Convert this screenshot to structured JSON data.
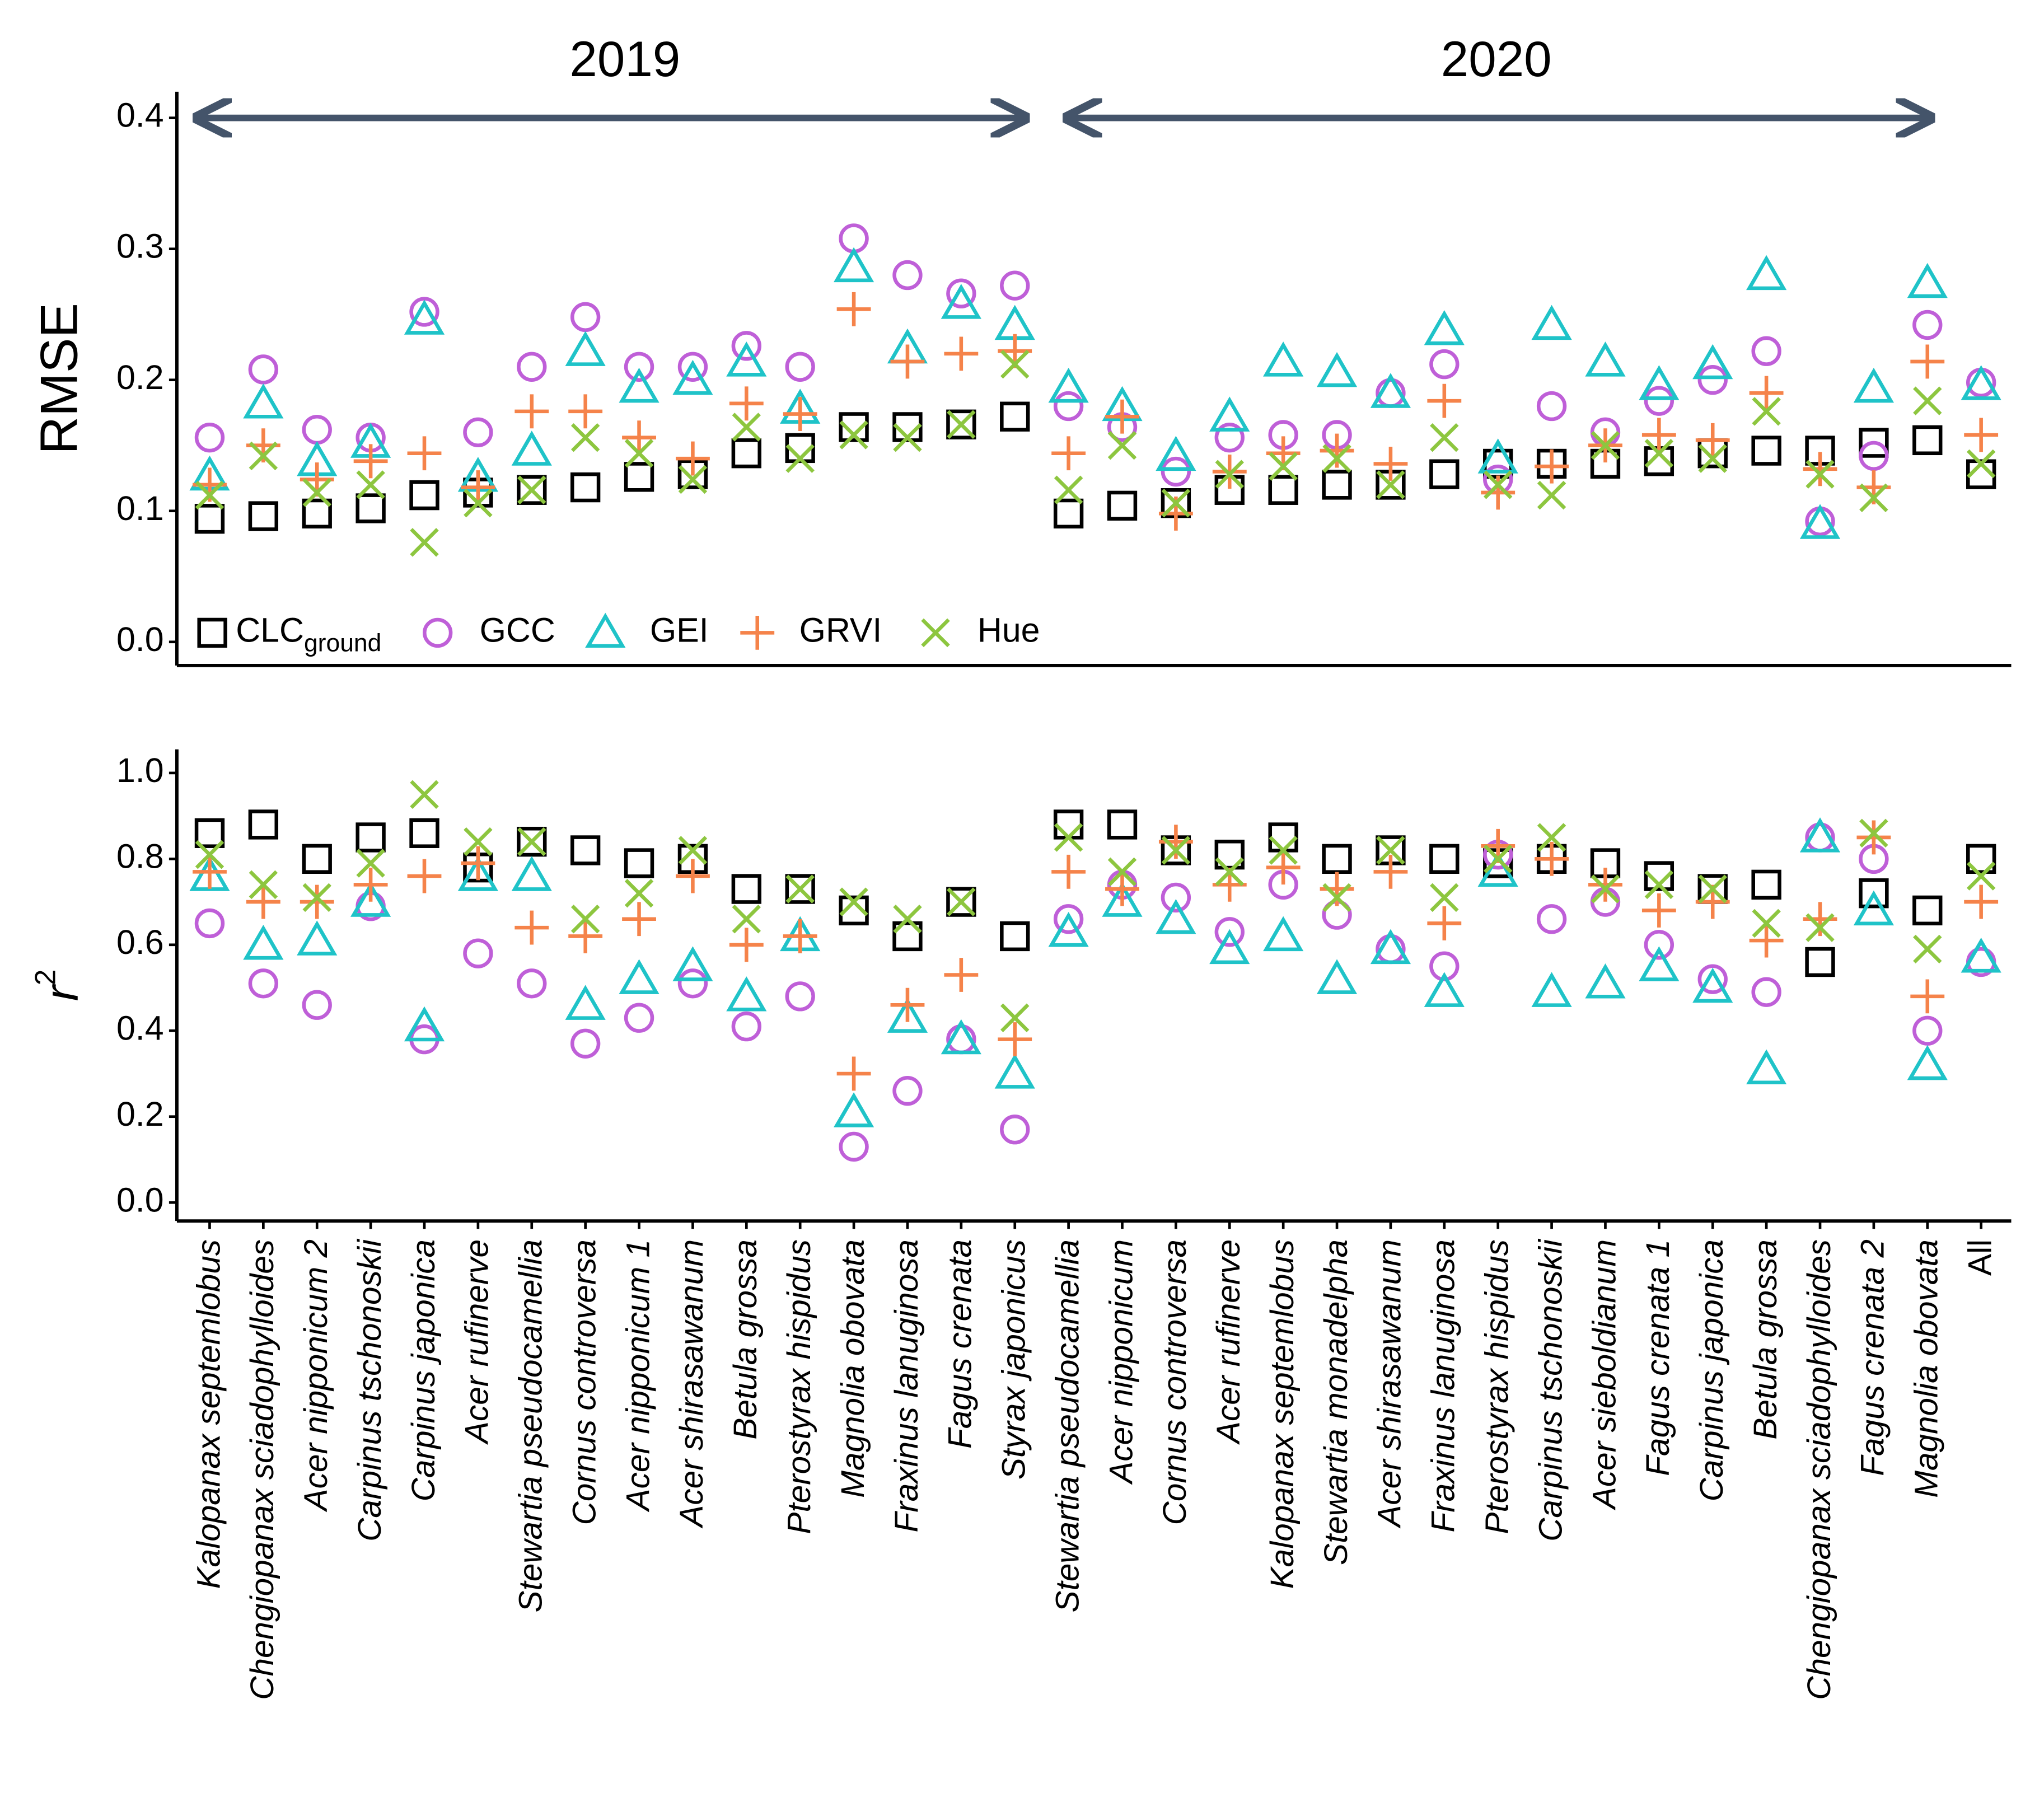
{
  "chart_data": [
    {
      "type": "scatter",
      "ylabel": "RMSE",
      "annotations": [
        {
          "text": "2019"
        },
        {
          "text": "2020"
        }
      ],
      "ylim": [
        -0.018,
        0.42
      ],
      "yticks": [
        {
          "value": 0,
          "label": "0.0"
        },
        0.1,
        0.2,
        0.3,
        0.4
      ],
      "legend": "lower left",
      "series": [
        {
          "name": "CLC",
          "name_subscript": "ground",
          "marker": "square",
          "color": "#000000",
          "values": [
            0.094,
            0.096,
            0.098,
            0.102,
            0.112,
            0.114,
            0.116,
            0.118,
            0.126,
            0.128,
            0.144,
            0.148,
            0.164,
            0.164,
            0.166,
            0.172,
            0.098,
            0.104,
            0.106,
            0.116,
            0.116,
            0.12,
            0.12,
            0.128,
            0.136,
            0.136,
            0.136,
            0.138,
            0.144,
            0.146,
            0.146,
            0.152,
            0.154,
            0.128
          ]
        },
        {
          "name": "GCC",
          "marker": "circle",
          "color": "#bf5fd8",
          "values": [
            0.156,
            0.208,
            0.162,
            0.156,
            0.252,
            0.16,
            0.21,
            0.248,
            0.21,
            0.21,
            0.226,
            0.21,
            0.308,
            0.28,
            0.266,
            0.272,
            0.18,
            0.164,
            0.13,
            0.156,
            0.158,
            0.158,
            0.19,
            0.212,
            0.124,
            0.18,
            0.16,
            0.184,
            0.2,
            0.222,
            0.092,
            0.142,
            0.242,
            0.198
          ]
        },
        {
          "name": "GEI",
          "marker": "triangle",
          "color": "#1fc3c8",
          "values": [
            0.127,
            0.182,
            0.138,
            0.152,
            0.246,
            0.126,
            0.146,
            0.222,
            0.194,
            0.2,
            0.214,
            0.178,
            0.286,
            0.224,
            0.258,
            0.242,
            0.194,
            0.18,
            0.142,
            0.172,
            0.214,
            0.206,
            0.19,
            0.238,
            0.14,
            0.242,
            0.214,
            0.196,
            0.212,
            0.28,
            0.09,
            0.194,
            0.274,
            0.196
          ]
        },
        {
          "name": "GRVI",
          "marker": "plus",
          "color": "#f5834a",
          "values": [
            0.12,
            0.15,
            0.124,
            0.138,
            0.144,
            0.118,
            0.176,
            0.176,
            0.156,
            0.14,
            0.182,
            0.174,
            0.254,
            0.214,
            0.22,
            0.222,
            0.144,
            0.172,
            0.098,
            0.13,
            0.144,
            0.146,
            0.136,
            0.184,
            0.114,
            0.134,
            0.15,
            0.158,
            0.154,
            0.19,
            0.132,
            0.118,
            0.214,
            0.158
          ]
        },
        {
          "name": "Hue",
          "marker": "cross",
          "color": "#8dc63f",
          "values": [
            0.112,
            0.142,
            0.114,
            0.12,
            0.076,
            0.106,
            0.116,
            0.156,
            0.144,
            0.124,
            0.164,
            0.14,
            0.158,
            0.156,
            0.166,
            0.212,
            0.116,
            0.15,
            0.106,
            0.128,
            0.134,
            0.14,
            0.12,
            0.156,
            0.12,
            0.112,
            0.15,
            0.144,
            0.14,
            0.176,
            0.128,
            0.11,
            0.184,
            0.136
          ]
        }
      ]
    },
    {
      "type": "scatter",
      "ylabel": "r",
      "ylabel_superscript": "2",
      "categories": [
        "Kalopanax septemlobus",
        "Chengiopanax sciadophylloides",
        "Acer nipponicum 2",
        "Carpinus tschonoskii",
        "Carpinus japonica",
        "Acer rufinerve",
        "Stewartia pseudocamellia",
        "Cornus controversa",
        "Acer nipponicum 1",
        "Acer shirasawanum",
        "Betula grossa",
        "Pterostyrax hispidus",
        "Magnolia obovata",
        "Fraxinus lanuginosa",
        "Fagus crenata",
        "Styrax japonicus",
        "Stewartia pseudocamellia",
        "Acer nipponicum",
        "Cornus controversa",
        "Acer rufinerve",
        "Kalopanax septemlobus",
        "Stewartia monadelpha",
        "Acer shirasawanum",
        "Fraxinus lanuginosa",
        "Pterostyrax hispidus",
        "Carpinus tschonoskii",
        "Acer sieboldianum",
        "Fagus crenata 1",
        "Carpinus japonica",
        "Betula grossa",
        "Chengiopanax sciadophylloides",
        "Fagus crenata 2",
        "Magnolia obovata",
        "All"
      ],
      "ylim": [
        -0.043,
        1.055
      ],
      "yticks": [
        {
          "value": 0,
          "label": "0.0"
        },
        0.2,
        0.4,
        0.6,
        0.8,
        {
          "value": 1,
          "label": "1.0"
        }
      ],
      "series": [
        {
          "marker": "square",
          "color": "#000000",
          "values": [
            0.86,
            0.88,
            0.8,
            0.85,
            0.86,
            0.78,
            0.84,
            0.82,
            0.79,
            0.8,
            0.73,
            0.73,
            0.68,
            0.62,
            0.7,
            0.62,
            0.88,
            0.88,
            0.82,
            0.81,
            0.85,
            0.8,
            0.82,
            0.8,
            0.79,
            0.8,
            0.79,
            0.76,
            0.73,
            0.74,
            0.56,
            0.72,
            0.68,
            0.8
          ]
        },
        {
          "marker": "circle",
          "color": "#bf5fd8",
          "values": [
            0.65,
            0.51,
            0.46,
            0.69,
            0.38,
            0.58,
            0.51,
            0.37,
            0.43,
            0.51,
            0.41,
            0.48,
            0.13,
            0.26,
            0.38,
            0.17,
            0.66,
            0.74,
            0.71,
            0.63,
            0.74,
            0.67,
            0.59,
            0.55,
            0.81,
            0.66,
            0.7,
            0.6,
            0.52,
            0.49,
            0.85,
            0.8,
            0.4,
            0.56
          ]
        },
        {
          "marker": "triangle",
          "color": "#1fc3c8",
          "values": [
            0.76,
            0.6,
            0.61,
            0.7,
            0.41,
            0.76,
            0.76,
            0.46,
            0.52,
            0.55,
            0.48,
            0.62,
            0.21,
            0.43,
            0.38,
            0.3,
            0.63,
            0.7,
            0.66,
            0.59,
            0.62,
            0.52,
            0.59,
            0.49,
            0.77,
            0.49,
            0.51,
            0.55,
            0.5,
            0.31,
            0.85,
            0.68,
            0.32,
            0.57
          ]
        },
        {
          "marker": "plus",
          "color": "#f5834a",
          "values": [
            0.77,
            0.7,
            0.7,
            0.74,
            0.76,
            0.79,
            0.64,
            0.62,
            0.66,
            0.76,
            0.6,
            0.62,
            0.3,
            0.46,
            0.53,
            0.38,
            0.77,
            0.73,
            0.84,
            0.74,
            0.78,
            0.73,
            0.77,
            0.65,
            0.83,
            0.8,
            0.74,
            0.68,
            0.7,
            0.61,
            0.66,
            0.85,
            0.48,
            0.7
          ]
        },
        {
          "marker": "cross",
          "color": "#8dc63f",
          "values": [
            0.81,
            0.74,
            0.71,
            0.79,
            0.95,
            0.84,
            0.84,
            0.66,
            0.72,
            0.82,
            0.66,
            0.73,
            0.7,
            0.66,
            0.7,
            0.43,
            0.85,
            0.77,
            0.82,
            0.77,
            0.82,
            0.71,
            0.82,
            0.71,
            0.8,
            0.85,
            0.73,
            0.74,
            0.73,
            0.65,
            0.64,
            0.86,
            0.59,
            0.76
          ]
        }
      ]
    }
  ]
}
